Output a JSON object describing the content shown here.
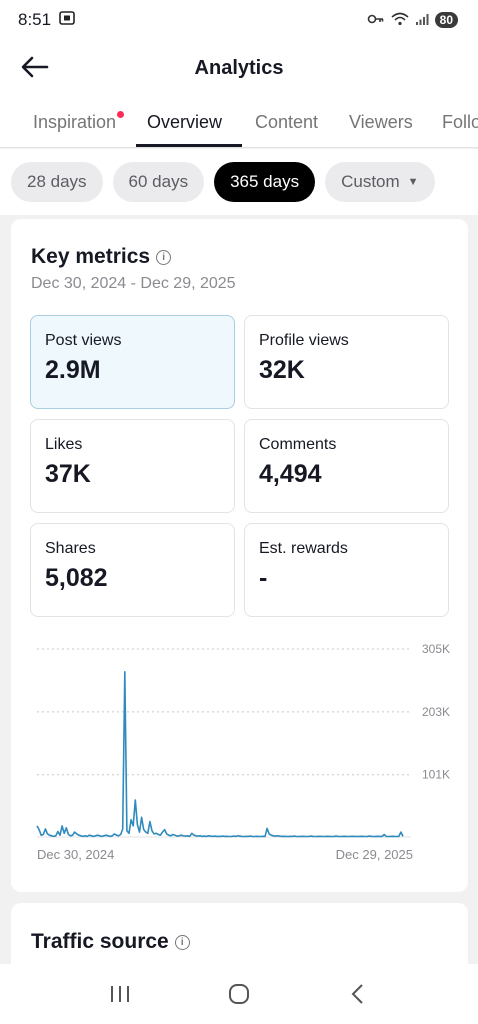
{
  "status_bar": {
    "time": "8:51",
    "battery": "80"
  },
  "header": {
    "title": "Analytics"
  },
  "tabs": [
    {
      "label": "Inspiration",
      "has_dot": true
    },
    {
      "label": "Overview",
      "active": true
    },
    {
      "label": "Content"
    },
    {
      "label": "Viewers"
    },
    {
      "label": "Follo"
    }
  ],
  "periods": [
    {
      "label": "28 days"
    },
    {
      "label": "60 days"
    },
    {
      "label": "365 days",
      "active": true
    },
    {
      "label": "Custom",
      "has_caret": true
    }
  ],
  "key_metrics": {
    "title": "Key metrics",
    "date_range": "Dec 30, 2024 - Dec 29, 2025",
    "metrics": [
      {
        "label": "Post views",
        "value": "2.9M",
        "selected": true
      },
      {
        "label": "Profile views",
        "value": "32K"
      },
      {
        "label": "Likes",
        "value": "37K"
      },
      {
        "label": "Comments",
        "value": "4,494"
      },
      {
        "label": "Shares",
        "value": "5,082"
      },
      {
        "label": "Est. rewards",
        "value": "-"
      }
    ]
  },
  "chart_data": {
    "type": "line",
    "series_color": "#2f8bbd",
    "x_start_label": "Dec 30, 2024",
    "x_end_label": "Dec 29, 2025",
    "y_tick_labels": [
      "305K",
      "203K",
      "101K"
    ],
    "y_ticks": [
      305000,
      203000,
      101000
    ],
    "ylim": [
      0,
      305000
    ],
    "grid": "dotted horizontal",
    "y": [
      18000,
      12000,
      3000,
      4000,
      13000,
      5000,
      3000,
      2000,
      1000,
      2000,
      9000,
      3000,
      18000,
      6000,
      15000,
      4000,
      2000,
      3000,
      8000,
      5000,
      3000,
      2000,
      1000,
      2000,
      1000,
      3000,
      2000,
      1000,
      2000,
      3000,
      2000,
      1000,
      2000,
      3000,
      2000,
      1000,
      2000,
      5000,
      3000,
      2000,
      4000,
      13000,
      268000,
      10000,
      6000,
      28000,
      18000,
      60000,
      20000,
      8000,
      32000,
      12000,
      8000,
      6000,
      25000,
      10000,
      5000,
      6000,
      4000,
      3000,
      8000,
      12000,
      5000,
      3000,
      2000,
      4000,
      3000,
      1500,
      2000,
      3000,
      2000,
      1500,
      2000,
      1000,
      6000,
      3000,
      2000,
      1500,
      2000,
      1000,
      1500,
      1000,
      2000,
      1500,
      1000,
      1500,
      1000,
      1200,
      1000,
      1500,
      1000,
      1200,
      800,
      1000,
      1500,
      1000,
      2000,
      1500,
      1000,
      800,
      1200,
      1000,
      1500,
      1000,
      800,
      1200,
      1000,
      800,
      1200,
      1000,
      14000,
      5000,
      3000,
      2000,
      1500,
      2000,
      1500,
      1000,
      1200,
      1000,
      800,
      1200,
      1000,
      1500,
      1000,
      800,
      1000,
      1200,
      1000,
      800,
      1000,
      1500,
      1000,
      800,
      1000,
      1200,
      1000,
      800,
      1000,
      1200,
      1000,
      800,
      1000,
      1500,
      1000,
      800,
      1000,
      1200,
      1000,
      800,
      1000,
      1200,
      1000,
      800,
      1000,
      1200,
      1000,
      800,
      1000,
      1500,
      1000,
      800,
      1000,
      1200,
      1000,
      800,
      4000,
      1000,
      800,
      1000,
      1200,
      1000,
      800,
      1000,
      8000,
      1000
    ]
  },
  "traffic_source": {
    "title": "Traffic source"
  }
}
